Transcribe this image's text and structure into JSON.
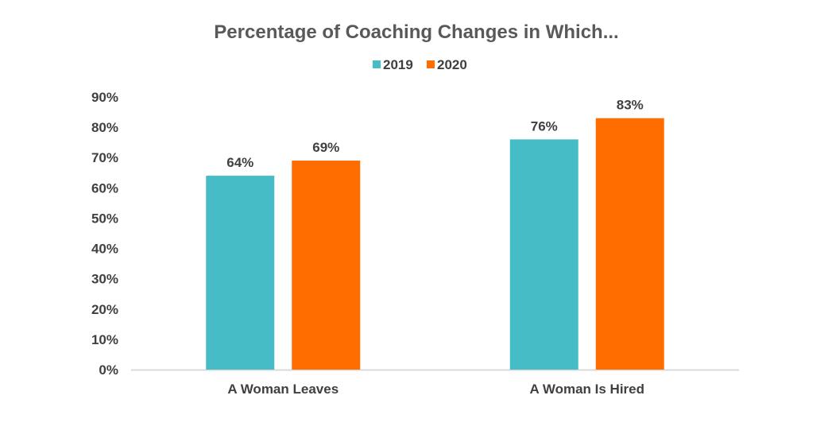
{
  "chart_data": {
    "type": "bar",
    "title": "Percentage of Coaching Changes in Which...",
    "categories": [
      "A Woman Leaves",
      "A Woman Is Hired"
    ],
    "series": [
      {
        "name": "2019",
        "values": [
          64,
          76
        ],
        "labels": [
          "64%",
          "76%"
        ],
        "color": "#45BCC6"
      },
      {
        "name": "2020",
        "values": [
          69,
          83
        ],
        "labels": [
          "69%",
          "83%"
        ],
        "color": "#FF6D00"
      }
    ],
    "ylim": [
      0,
      90
    ],
    "yticks": [
      "0%",
      "10%",
      "20%",
      "30%",
      "40%",
      "50%",
      "60%",
      "70%",
      "80%",
      "90%"
    ],
    "xlabel": "",
    "ylabel": "",
    "legend": "top-center",
    "grid": false,
    "axis_color": "#D9D9D9"
  }
}
